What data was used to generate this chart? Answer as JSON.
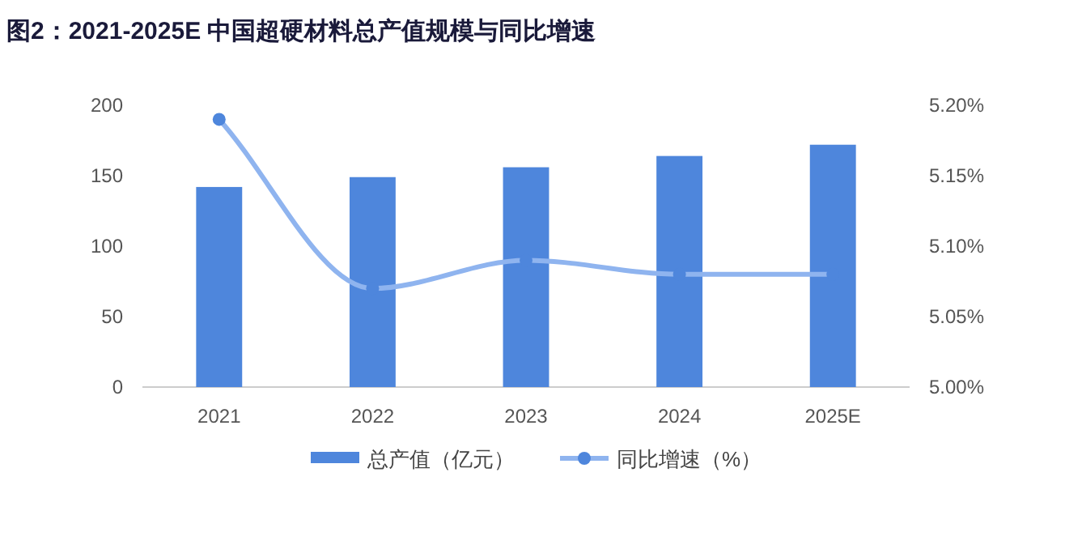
{
  "chart_data": {
    "type": "bar",
    "title": "图2：2021-2025E 中国超硬材料总产值规模与同比增速",
    "categories": [
      "2021",
      "2022",
      "2023",
      "2024",
      "2025E"
    ],
    "series": [
      {
        "name": "总产值（亿元）",
        "color": "#4e86dc",
        "values": [
          142,
          149,
          156,
          164,
          172
        ]
      },
      {
        "name": "同比增速（%）",
        "type": "line",
        "axis": "y2",
        "color": "#8fb4ef",
        "values": [
          5.19,
          5.07,
          5.09,
          5.08,
          5.08
        ]
      }
    ],
    "ylim": [
      0,
      200
    ],
    "yticks": [
      0,
      50,
      100,
      150,
      200
    ],
    "y2lim": [
      5.0,
      5.2
    ],
    "y2ticks": [
      {
        "value": 5.0,
        "label": "5.00%"
      },
      {
        "value": 5.05,
        "label": "5.05%"
      },
      {
        "value": 5.1,
        "label": "5.10%"
      },
      {
        "value": 5.15,
        "label": "5.15%"
      },
      {
        "value": 5.2,
        "label": "5.20%"
      }
    ],
    "grid": false,
    "legend": "bottom",
    "marker": "circle",
    "line_style": "solid"
  }
}
